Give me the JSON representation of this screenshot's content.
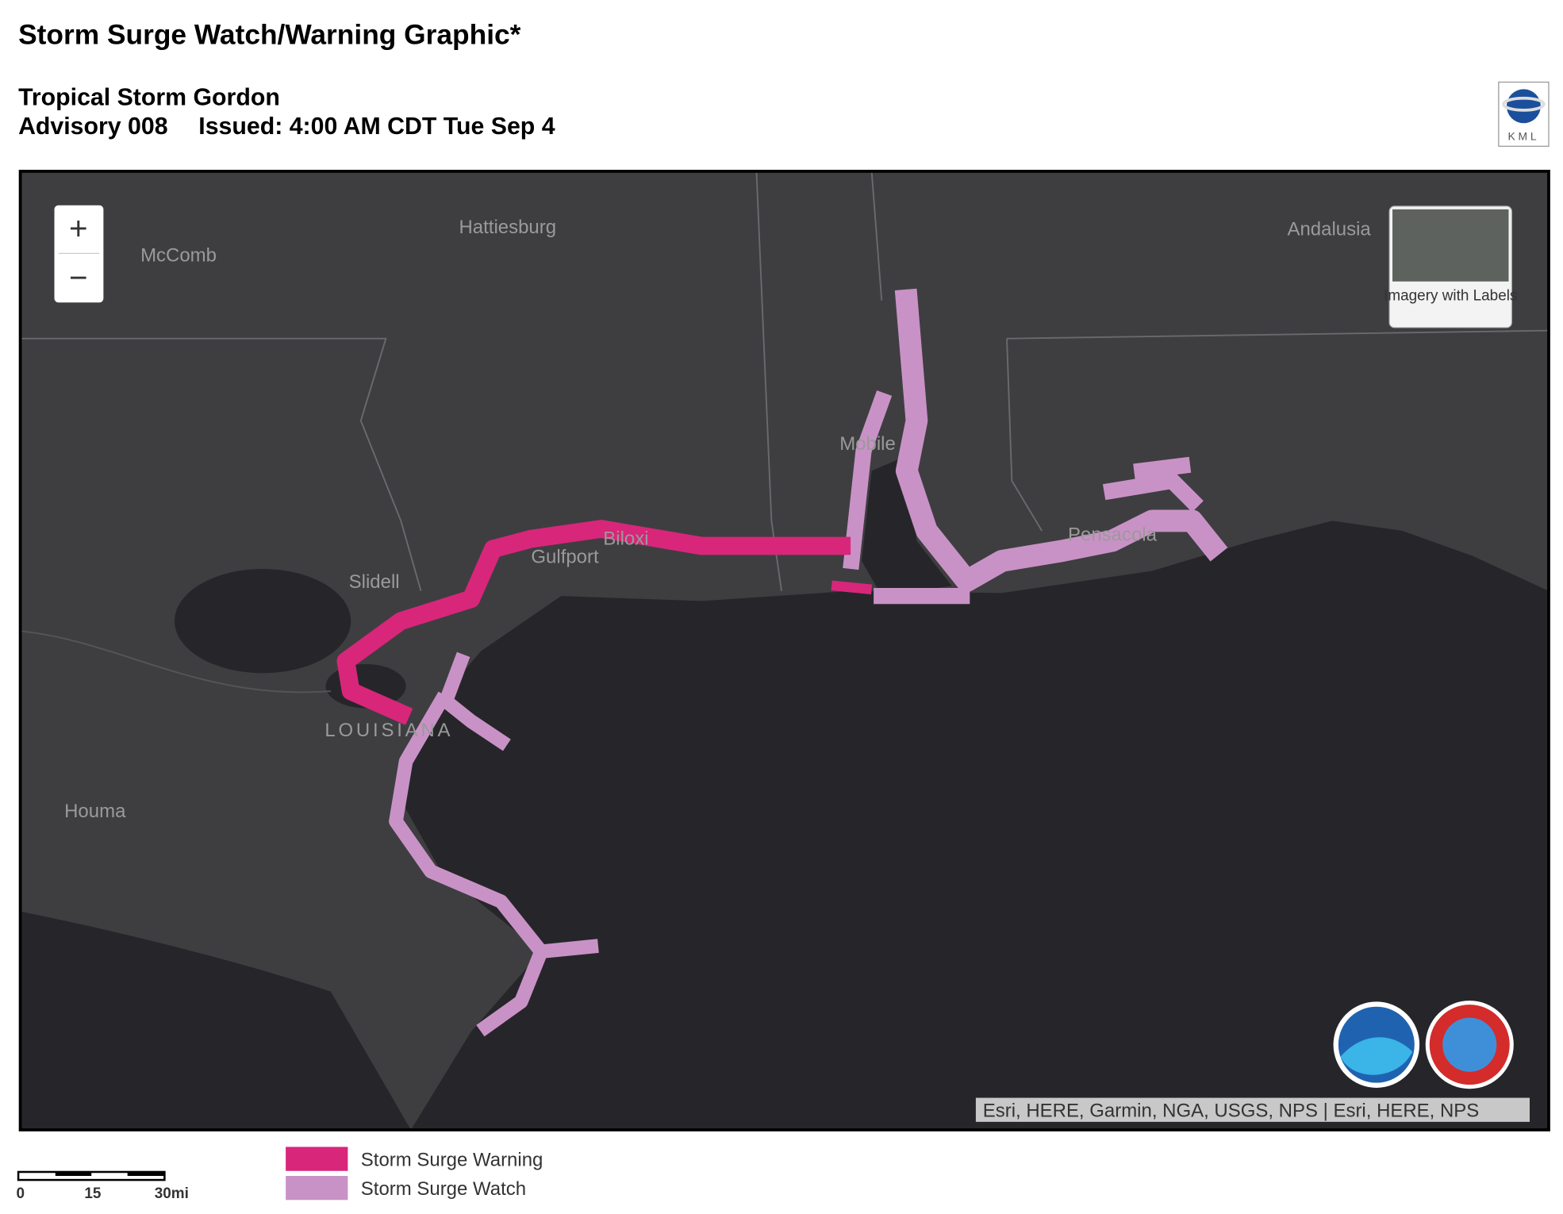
{
  "header": {
    "title": "Storm Surge Watch/Warning Graphic*",
    "storm": "Tropical Storm Gordon",
    "advisory": "Advisory 008",
    "issued": "Issued: 4:00 AM CDT Tue Sep 4",
    "kml": "KML"
  },
  "map": {
    "zoom_in": "+",
    "zoom_out": "−",
    "basemap": "Imagery with Labels",
    "labels": [
      "Hattiesburg",
      "McComb",
      "Andalusia",
      "Mobile",
      "Biloxi",
      "Gulfport",
      "Pensacola",
      "Slidell",
      "LOUISIANA",
      "Houma"
    ],
    "attribution": "Esri, HERE, Garmin, NGA, USGS, NPS | Esri, HERE, NPS"
  },
  "legend": {
    "items": [
      {
        "label": "Storm Surge Warning",
        "color": "#d8267a"
      },
      {
        "label": "Storm Surge Watch",
        "color": "#c992c6"
      }
    ]
  },
  "scale": {
    "labels": [
      "0",
      "15",
      "30mi"
    ]
  }
}
